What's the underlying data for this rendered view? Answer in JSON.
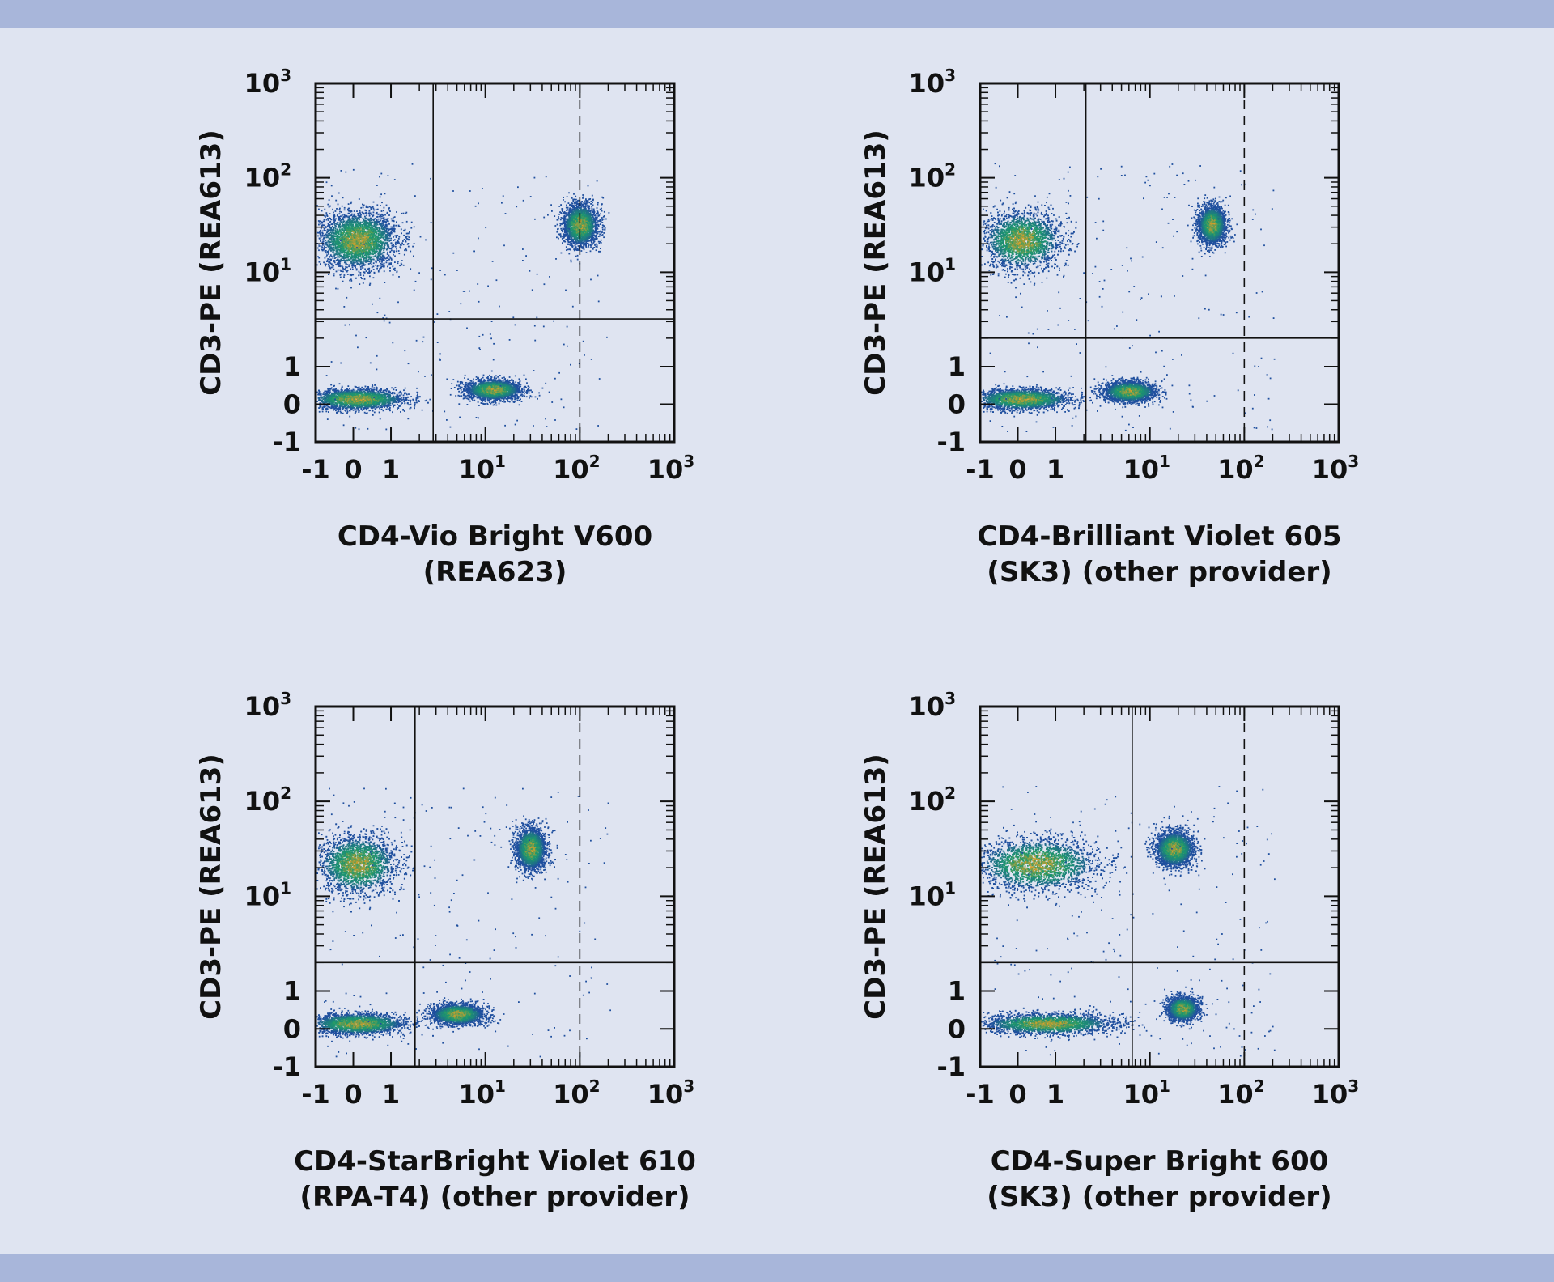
{
  "colors": {
    "background": "#dfe4f1",
    "band": "#a8b6da",
    "density_low": "#1f4f9e",
    "density_mid": "#1d9a6c",
    "density_high": "#f0a020"
  },
  "chart_data": [
    {
      "type": "scatter",
      "xlabel_lines": [
        "CD4-Vio Bright V600",
        "(REA623)"
      ],
      "ylabel": "CD3-PE (REA613)",
      "x_ticks": [
        {
          "value": -1,
          "base": "-1",
          "exp": ""
        },
        {
          "value": 0,
          "base": "0",
          "exp": ""
        },
        {
          "value": 1,
          "base": "1",
          "exp": ""
        },
        {
          "value": 10,
          "base": "10",
          "exp": "1"
        },
        {
          "value": 100,
          "base": "10",
          "exp": "2"
        },
        {
          "value": 1000,
          "base": "10",
          "exp": "3"
        }
      ],
      "y_ticks": [
        {
          "value": -1,
          "base": "-1",
          "exp": ""
        },
        {
          "value": 0,
          "base": "0",
          "exp": ""
        },
        {
          "value": 1,
          "base": "1",
          "exp": ""
        },
        {
          "value": 10,
          "base": "10",
          "exp": "1"
        },
        {
          "value": 100,
          "base": "10",
          "exp": "2"
        },
        {
          "value": 1000,
          "base": "10",
          "exp": "3"
        }
      ],
      "xlim": [
        -1,
        1000
      ],
      "ylim": [
        -1,
        1000
      ],
      "scale": "biexponential",
      "gate_x": 2.8,
      "gate_y": 3.2,
      "reference_x": 100,
      "populations": [
        {
          "cx": 0.1,
          "cy": 22,
          "sx": 0.45,
          "sy": 0.33,
          "density": 3200
        },
        {
          "cx": 100,
          "cy": 32,
          "sx": 0.2,
          "sy": 0.24,
          "density": 2400
        },
        {
          "cx": 0.1,
          "cy": 0.15,
          "sx": 0.55,
          "sy": 0.12,
          "density": 2800
        },
        {
          "cx": 12,
          "cy": 0.4,
          "sx": 0.32,
          "sy": 0.12,
          "density": 2200
        }
      ]
    },
    {
      "type": "scatter",
      "xlabel_lines": [
        "CD4-Brilliant Violet 605",
        "(SK3) (other provider)"
      ],
      "ylabel": "CD3-PE (REA613)",
      "x_ticks": [
        {
          "value": -1,
          "base": "-1",
          "exp": ""
        },
        {
          "value": 0,
          "base": "0",
          "exp": ""
        },
        {
          "value": 1,
          "base": "1",
          "exp": ""
        },
        {
          "value": 10,
          "base": "10",
          "exp": "1"
        },
        {
          "value": 100,
          "base": "10",
          "exp": "2"
        },
        {
          "value": 1000,
          "base": "10",
          "exp": "3"
        }
      ],
      "y_ticks": [
        {
          "value": -1,
          "base": "-1",
          "exp": ""
        },
        {
          "value": 0,
          "base": "0",
          "exp": ""
        },
        {
          "value": 1,
          "base": "1",
          "exp": ""
        },
        {
          "value": 10,
          "base": "10",
          "exp": "1"
        },
        {
          "value": 100,
          "base": "10",
          "exp": "2"
        },
        {
          "value": 1000,
          "base": "10",
          "exp": "3"
        }
      ],
      "xlim": [
        -1,
        1000
      ],
      "ylim": [
        -1,
        1000
      ],
      "scale": "biexponential",
      "gate_x": 2.1,
      "gate_y": 2.0,
      "reference_x": 100,
      "populations": [
        {
          "cx": 0.1,
          "cy": 22,
          "sx": 0.45,
          "sy": 0.33,
          "density": 3200
        },
        {
          "cx": 45,
          "cy": 32,
          "sx": 0.16,
          "sy": 0.22,
          "density": 2400
        },
        {
          "cx": 0.1,
          "cy": 0.15,
          "sx": 0.55,
          "sy": 0.12,
          "density": 2800
        },
        {
          "cx": 6,
          "cy": 0.35,
          "sx": 0.3,
          "sy": 0.12,
          "density": 2200
        }
      ]
    },
    {
      "type": "scatter",
      "xlabel_lines": [
        "CD4-StarBright Violet 610",
        "(RPA-T4) (other provider)"
      ],
      "ylabel": "CD3-PE (REA613)",
      "x_ticks": [
        {
          "value": -1,
          "base": "-1",
          "exp": ""
        },
        {
          "value": 0,
          "base": "0",
          "exp": ""
        },
        {
          "value": 1,
          "base": "1",
          "exp": ""
        },
        {
          "value": 10,
          "base": "10",
          "exp": "1"
        },
        {
          "value": 100,
          "base": "10",
          "exp": "2"
        },
        {
          "value": 1000,
          "base": "10",
          "exp": "3"
        }
      ],
      "y_ticks": [
        {
          "value": -1,
          "base": "-1",
          "exp": ""
        },
        {
          "value": 0,
          "base": "0",
          "exp": ""
        },
        {
          "value": 1,
          "base": "1",
          "exp": ""
        },
        {
          "value": 10,
          "base": "10",
          "exp": "1"
        },
        {
          "value": 100,
          "base": "10",
          "exp": "2"
        },
        {
          "value": 1000,
          "base": "10",
          "exp": "3"
        }
      ],
      "xlim": [
        -1,
        1000
      ],
      "ylim": [
        -1,
        1000
      ],
      "scale": "biexponential",
      "gate_x": 1.8,
      "gate_y": 2.0,
      "reference_x": 100,
      "populations": [
        {
          "cx": 0.1,
          "cy": 22,
          "sx": 0.45,
          "sy": 0.33,
          "density": 3200
        },
        {
          "cx": 30,
          "cy": 32,
          "sx": 0.17,
          "sy": 0.24,
          "density": 2400
        },
        {
          "cx": 0.1,
          "cy": 0.15,
          "sx": 0.55,
          "sy": 0.12,
          "density": 2800
        },
        {
          "cx": 5,
          "cy": 0.4,
          "sx": 0.3,
          "sy": 0.12,
          "density": 2200
        }
      ]
    },
    {
      "type": "scatter",
      "xlabel_lines": [
        "CD4-Super Bright 600",
        "(SK3) (other provider)"
      ],
      "ylabel": "CD3-PE (REA613)",
      "x_ticks": [
        {
          "value": -1,
          "base": "-1",
          "exp": ""
        },
        {
          "value": 0,
          "base": "0",
          "exp": ""
        },
        {
          "value": 1,
          "base": "1",
          "exp": ""
        },
        {
          "value": 10,
          "base": "10",
          "exp": "1"
        },
        {
          "value": 100,
          "base": "10",
          "exp": "2"
        },
        {
          "value": 1000,
          "base": "10",
          "exp": "3"
        }
      ],
      "y_ticks": [
        {
          "value": -1,
          "base": "-1",
          "exp": ""
        },
        {
          "value": 0,
          "base": "0",
          "exp": ""
        },
        {
          "value": 1,
          "base": "1",
          "exp": ""
        },
        {
          "value": 10,
          "base": "10",
          "exp": "1"
        },
        {
          "value": 100,
          "base": "10",
          "exp": "2"
        },
        {
          "value": 1000,
          "base": "10",
          "exp": "3"
        }
      ],
      "xlim": [
        -1,
        1000
      ],
      "ylim": [
        -1,
        1000
      ],
      "scale": "biexponential",
      "gate_x": 6.5,
      "gate_y": 2.0,
      "reference_x": 100,
      "populations": [
        {
          "cx": 0.5,
          "cy": 22,
          "sx": 0.7,
          "sy": 0.3,
          "density": 3400
        },
        {
          "cx": 18,
          "cy": 32,
          "sx": 0.22,
          "sy": 0.2,
          "density": 2400
        },
        {
          "cx": 0.8,
          "cy": 0.15,
          "sx": 0.75,
          "sy": 0.12,
          "density": 3000
        },
        {
          "cx": 22,
          "cy": 0.55,
          "sx": 0.18,
          "sy": 0.14,
          "density": 1800
        }
      ]
    }
  ]
}
